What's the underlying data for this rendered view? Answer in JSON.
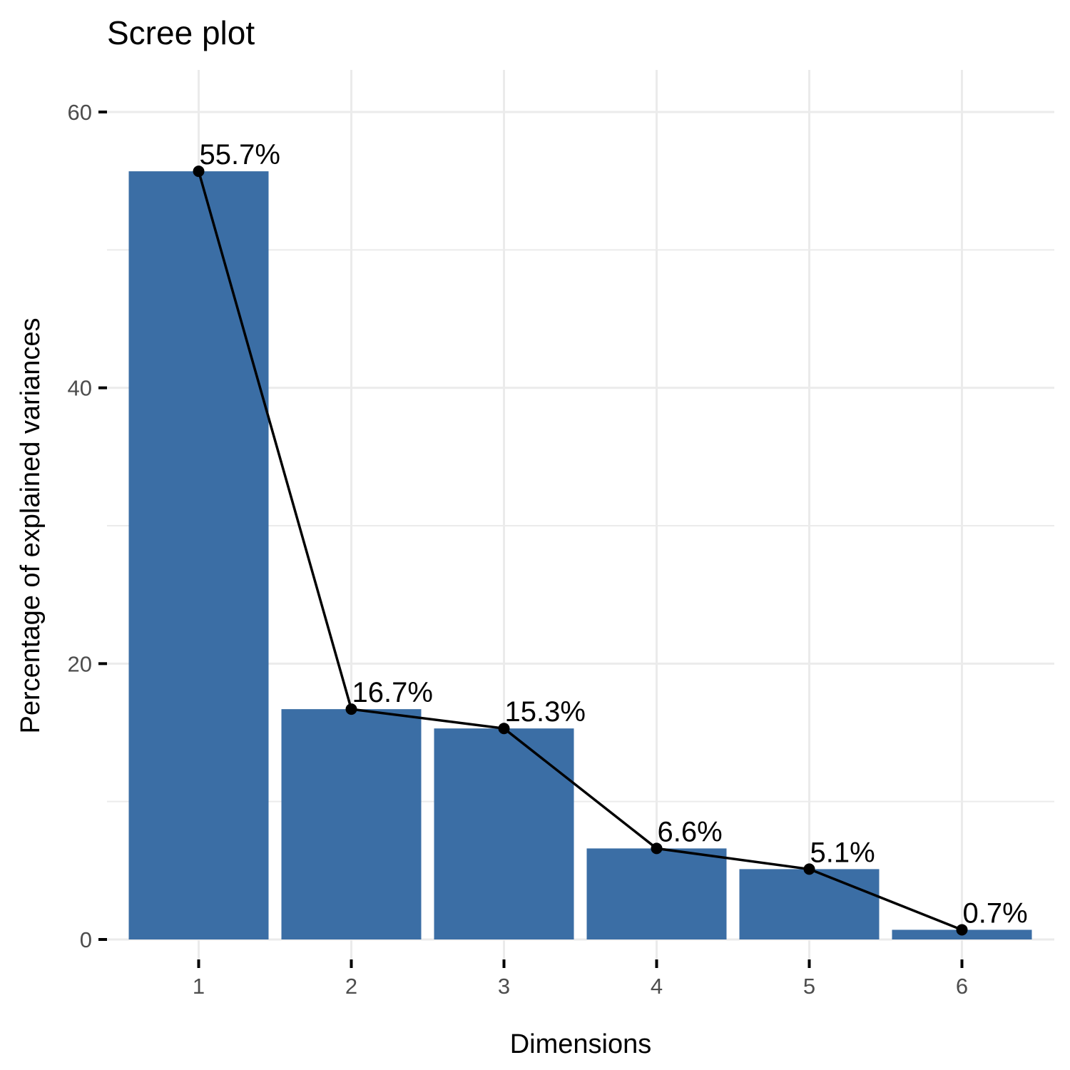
{
  "chart_data": {
    "type": "bar",
    "title": "Scree plot",
    "xlabel": "Dimensions",
    "ylabel": "Percentage of explained variances",
    "categories": [
      "1",
      "2",
      "3",
      "4",
      "5",
      "6"
    ],
    "values": [
      55.7,
      16.7,
      15.3,
      6.6,
      5.1,
      0.7
    ],
    "data_labels": [
      "55.7%",
      "16.7%",
      "15.3%",
      "6.6%",
      "5.1%",
      "0.7%"
    ],
    "ylim": [
      0,
      60
    ],
    "yticks": [
      0,
      20,
      40,
      60
    ],
    "ytick_labels": [
      "0",
      "20",
      "40",
      "60"
    ],
    "grid": true,
    "overlay": "line with points connecting bar tops",
    "colors": {
      "bar": "#3b6ea5",
      "line": "#000000",
      "grid": "#ebebeb"
    }
  }
}
